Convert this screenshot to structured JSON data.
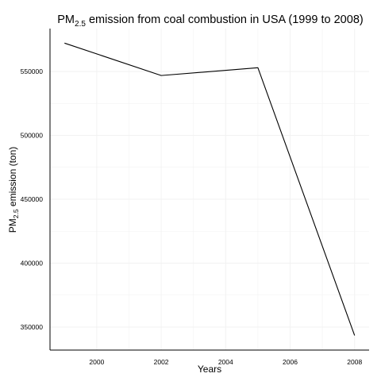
{
  "chart_data": {
    "type": "line",
    "title": {
      "prefix": "PM",
      "subscript": "2.5",
      "suffix": " emission from coal combustion in USA (1999 to 2008)"
    },
    "xlabel": "Years",
    "ylabel": {
      "prefix": "PM",
      "subscript": "2.5",
      "suffix": " emission (ton)"
    },
    "x": [
      1999,
      2002,
      2005,
      2008
    ],
    "values": [
      572126,
      546789,
      552881,
      343432
    ],
    "xlim": [
      1998.55,
      2008.45
    ],
    "ylim": [
      332000,
      583500
    ],
    "x_ticks": [
      2000,
      2002,
      2004,
      2006,
      2008
    ],
    "y_ticks": [
      350000,
      400000,
      450000,
      500000,
      550000
    ],
    "grid": true,
    "legend": "none",
    "colors": {
      "line": "#000000",
      "grid": "#f2f2f2",
      "axis": "#000000",
      "background": "#ffffff"
    }
  }
}
